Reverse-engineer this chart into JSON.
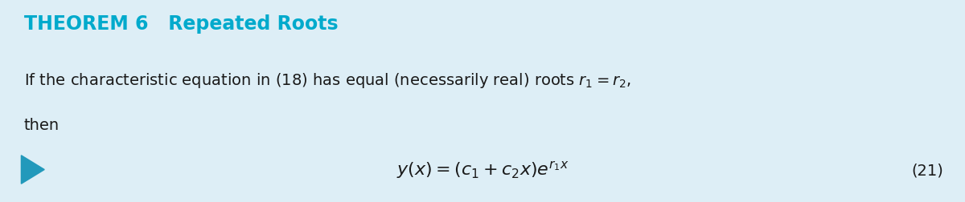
{
  "bg_color": "#ddeef6",
  "title_color": "#00aacc",
  "text_color": "#1a1a1a",
  "arrow_color": "#2299bb",
  "title": "THEOREM 6   Repeated Roots",
  "body_line1": "If the characteristic equation in (18) has equal (necessarily real) roots $r_1 = r_2$,",
  "body_line2": "then",
  "equation": "$y(x) = (c_1 + c_2 x)e^{r_1 x}$",
  "equation_number": "(21)",
  "title_fontsize": 17,
  "body_fontsize": 14,
  "eq_fontsize": 16,
  "eqnum_fontsize": 14,
  "fig_width": 12.0,
  "fig_height": 2.53
}
